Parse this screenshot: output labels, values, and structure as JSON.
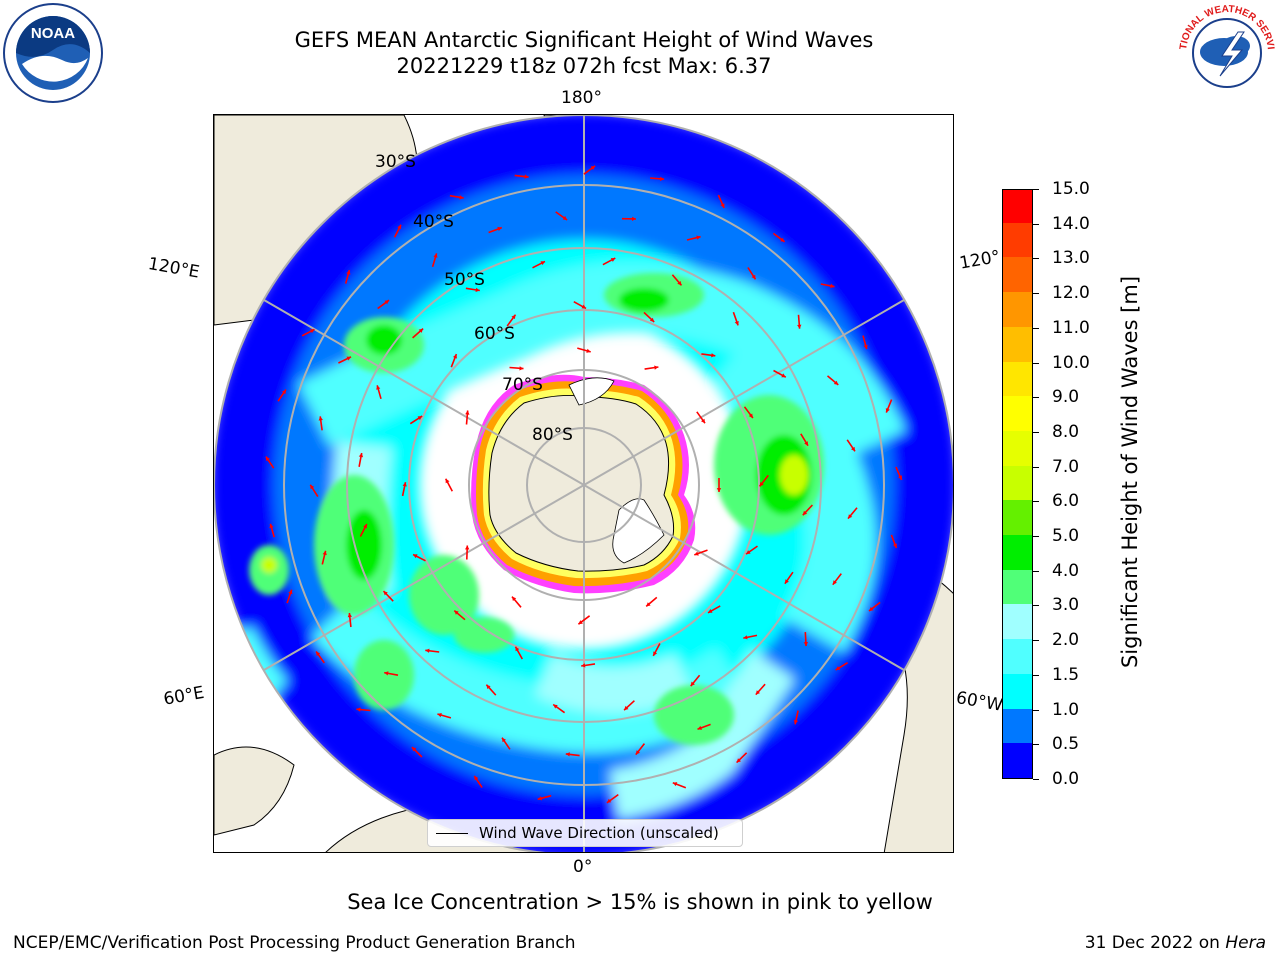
{
  "title": {
    "line1": "GEFS MEAN Antarctic Significant Height of Wind Waves",
    "line2": "20221229 t18z 072h fcst   Max: 6.37"
  },
  "map": {
    "projection": "south-polar-stereographic",
    "longitude_labels": {
      "top": "180°",
      "bottom": "0°",
      "left_upper": "120°E",
      "right_upper": "120°",
      "left_lower": "60°E",
      "right_lower": "60°W"
    },
    "latitude_labels": [
      "30°S",
      "40°S",
      "50°S",
      "60°S",
      "70°S",
      "80°S"
    ],
    "legend_label": "Wind Wave Direction (unscaled)",
    "land_color": "#efebdc",
    "arrow_color": "#ff0000",
    "sea_ice_colors": [
      "#ff40ff",
      "#ffa000",
      "#ffff60"
    ]
  },
  "colorbar": {
    "title": "Significant Height of Wind Waves [m]",
    "tick_labels": [
      "0.0",
      "0.5",
      "1.0",
      "1.5",
      "2.0",
      "3.0",
      "4.0",
      "5.0",
      "6.0",
      "7.0",
      "8.0",
      "9.0",
      "10.0",
      "11.0",
      "12.0",
      "13.0",
      "14.0",
      "15.0"
    ],
    "colors": [
      "#0000ff",
      "#0078ff",
      "#00ffff",
      "#50ffff",
      "#a0ffff",
      "#50ff78",
      "#00ee00",
      "#64f000",
      "#c8ff00",
      "#e6ff00",
      "#ffff00",
      "#ffe600",
      "#ffbe00",
      "#ff9600",
      "#ff6400",
      "#ff3c00",
      "#ff0000"
    ]
  },
  "caption": "Sea Ice Concentration > 15% is shown in pink to yellow",
  "footer": {
    "left": "NCEP/EMC/Verification Post Processing Product Generation Branch",
    "date": "31 Dec 2022 on",
    "machine": "Hera"
  },
  "logos": {
    "noaa_text": "NOAA",
    "nws_text": "NATIONAL WEATHER SERVICE"
  }
}
